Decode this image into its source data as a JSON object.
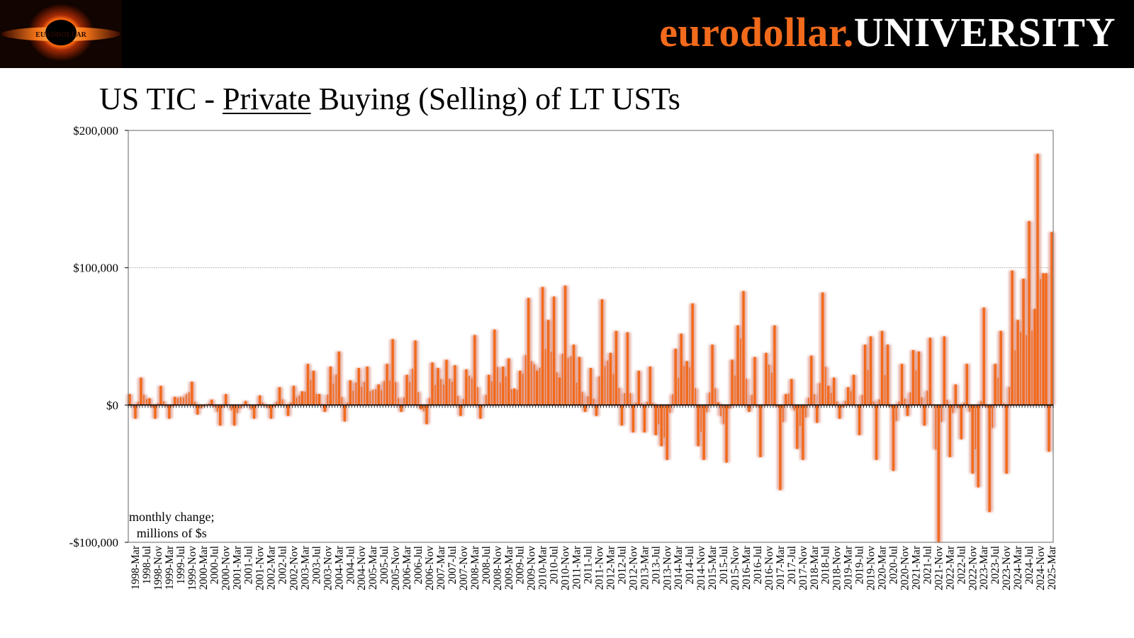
{
  "brand": {
    "part1": "eurodollar.",
    "part2": "UNIVERSITY"
  },
  "logo": {
    "text": "EURODOLLAR"
  },
  "title": {
    "prefix": "US TIC - ",
    "emphasis": "Private",
    "suffix": " Buying (Selling) of LT USTs"
  },
  "note": {
    "line1": "monthly change;",
    "line2": "millions of $s"
  },
  "colors": {
    "bar": "#f26a1b",
    "glow": "#e3a397",
    "brand_orange": "#f26a1b",
    "header_bg": "#000000"
  },
  "chart_data": {
    "type": "bar",
    "title": "US TIC - Private Buying (Selling) of LT USTs",
    "ylabel": "monthly change; millions of $s",
    "ylim": [
      -100000,
      200000
    ],
    "yticks": [
      200000,
      100000,
      0,
      -100000
    ],
    "ytick_labels": [
      "$200,000",
      "$100,000",
      "$0",
      "-$100,000"
    ],
    "grid": true,
    "start": "1998-01",
    "end": "2025-03",
    "tick_labels": [
      "1998-Mar",
      "1998-Jul",
      "1998-Nov",
      "1999-Mar",
      "1999-Jul",
      "1999-Nov",
      "2000-Mar",
      "2000-Jul",
      "2000-Nov",
      "2001-Mar",
      "2001-Jul",
      "2001-Nov",
      "2002-Mar",
      "2002-Jul",
      "2002-Nov",
      "2003-Mar",
      "2003-Jul",
      "2003-Nov",
      "2004-Mar",
      "2004-Jul",
      "2004-Nov",
      "2005-Mar",
      "2005-Jul",
      "2005-Nov",
      "2006-Mar",
      "2006-Jul",
      "2006-Nov",
      "2007-Mar",
      "2007-Jul",
      "2007-Nov",
      "2008-Mar",
      "2008-Jul",
      "2008-Nov",
      "2009-Mar",
      "2009-Jul",
      "2009-Nov",
      "2010-Mar",
      "2010-Jul",
      "2010-Nov",
      "2011-Mar",
      "2011-Jul",
      "2011-Nov",
      "2012-Mar",
      "2012-Jul",
      "2012-Nov",
      "2013-Mar",
      "2013-Jul",
      "2013-Nov",
      "2014-Mar",
      "2014-Jul",
      "2014-Nov",
      "2015-Mar",
      "2015-Jul",
      "2015-Nov",
      "2016-Mar",
      "2016-Jul",
      "2016-Nov",
      "2017-Mar",
      "2017-Jul",
      "2017-Nov",
      "2018-Mar",
      "2018-Jul",
      "2018-Nov",
      "2019-Mar",
      "2019-Jul",
      "2019-Nov",
      "2020-Mar",
      "2020-Jul",
      "2020-Nov",
      "2021-Mar",
      "2021-Jul",
      "2021-Nov",
      "2022-Mar",
      "2022-Jul",
      "2022-Nov",
      "2023-Mar",
      "2023-Jul",
      "2023-Nov",
      "2024-Mar",
      "2024-Jul",
      "2024-Nov",
      "2025-Mar"
    ],
    "highlights": [
      {
        "t": "1998-01",
        "v": 8000
      },
      {
        "t": "1998-03",
        "v": -10000
      },
      {
        "t": "1998-05",
        "v": 20000
      },
      {
        "t": "1998-08",
        "v": 5000
      },
      {
        "t": "1998-10",
        "v": -10000
      },
      {
        "t": "1998-12",
        "v": 14000
      },
      {
        "t": "1999-03",
        "v": -10000
      },
      {
        "t": "1999-05",
        "v": 6000
      },
      {
        "t": "1999-11",
        "v": 17000
      },
      {
        "t": "2000-01",
        "v": -7000
      },
      {
        "t": "2000-06",
        "v": 4000
      },
      {
        "t": "2000-09",
        "v": -15000
      },
      {
        "t": "2000-11",
        "v": 8000
      },
      {
        "t": "2001-02",
        "v": -15000
      },
      {
        "t": "2001-06",
        "v": 3000
      },
      {
        "t": "2001-09",
        "v": -10000
      },
      {
        "t": "2001-11",
        "v": 7000
      },
      {
        "t": "2002-03",
        "v": -10000
      },
      {
        "t": "2002-06",
        "v": 13000
      },
      {
        "t": "2002-09",
        "v": -8000
      },
      {
        "t": "2002-11",
        "v": 14000
      },
      {
        "t": "2003-02",
        "v": 10000
      },
      {
        "t": "2003-04",
        "v": 30000
      },
      {
        "t": "2003-06",
        "v": 25000
      },
      {
        "t": "2003-08",
        "v": 8000
      },
      {
        "t": "2003-10",
        "v": -5000
      },
      {
        "t": "2003-12",
        "v": 28000
      },
      {
        "t": "2004-03",
        "v": 39000
      },
      {
        "t": "2004-05",
        "v": -12000
      },
      {
        "t": "2004-07",
        "v": 18000
      },
      {
        "t": "2004-10",
        "v": 27000
      },
      {
        "t": "2005-01",
        "v": 28000
      },
      {
        "t": "2005-05",
        "v": 15000
      },
      {
        "t": "2005-08",
        "v": 30000
      },
      {
        "t": "2005-10",
        "v": 48000
      },
      {
        "t": "2006-01",
        "v": -5000
      },
      {
        "t": "2006-03",
        "v": 22000
      },
      {
        "t": "2006-06",
        "v": 47000
      },
      {
        "t": "2006-08",
        "v": -3000
      },
      {
        "t": "2006-10",
        "v": -14000
      },
      {
        "t": "2006-12",
        "v": 31000
      },
      {
        "t": "2007-02",
        "v": 27000
      },
      {
        "t": "2007-05",
        "v": 33000
      },
      {
        "t": "2007-08",
        "v": 29000
      },
      {
        "t": "2007-10",
        "v": -8000
      },
      {
        "t": "2007-12",
        "v": 26000
      },
      {
        "t": "2008-03",
        "v": 51000
      },
      {
        "t": "2008-05",
        "v": -10000
      },
      {
        "t": "2008-08",
        "v": 22000
      },
      {
        "t": "2008-10",
        "v": 55000
      },
      {
        "t": "2009-01",
        "v": 28000
      },
      {
        "t": "2009-03",
        "v": 34000
      },
      {
        "t": "2009-05",
        "v": 12000
      },
      {
        "t": "2009-07",
        "v": 25000
      },
      {
        "t": "2009-10",
        "v": 78000
      },
      {
        "t": "2010-01",
        "v": 25000
      },
      {
        "t": "2010-03",
        "v": 86000
      },
      {
        "t": "2010-05",
        "v": 62000
      },
      {
        "t": "2010-07",
        "v": 79000
      },
      {
        "t": "2010-09",
        "v": 20000
      },
      {
        "t": "2010-11",
        "v": 87000
      },
      {
        "t": "2011-02",
        "v": 44000
      },
      {
        "t": "2011-04",
        "v": 35000
      },
      {
        "t": "2011-06",
        "v": -5000
      },
      {
        "t": "2011-08",
        "v": 27000
      },
      {
        "t": "2011-10",
        "v": -8000
      },
      {
        "t": "2011-12",
        "v": 77000
      },
      {
        "t": "2012-03",
        "v": 38000
      },
      {
        "t": "2012-05",
        "v": 54000
      },
      {
        "t": "2012-07",
        "v": -15000
      },
      {
        "t": "2012-09",
        "v": 53000
      },
      {
        "t": "2012-11",
        "v": -20000
      },
      {
        "t": "2013-01",
        "v": 25000
      },
      {
        "t": "2013-03",
        "v": -20000
      },
      {
        "t": "2013-05",
        "v": 28000
      },
      {
        "t": "2013-07",
        "v": -22000
      },
      {
        "t": "2013-09",
        "v": -30000
      },
      {
        "t": "2013-11",
        "v": -40000
      },
      {
        "t": "2014-02",
        "v": 41000
      },
      {
        "t": "2014-04",
        "v": 52000
      },
      {
        "t": "2014-06",
        "v": 32000
      },
      {
        "t": "2014-08",
        "v": 74000
      },
      {
        "t": "2014-10",
        "v": -30000
      },
      {
        "t": "2014-12",
        "v": -40000
      },
      {
        "t": "2015-03",
        "v": 44000
      },
      {
        "t": "2015-05",
        "v": 2000
      },
      {
        "t": "2015-08",
        "v": -42000
      },
      {
        "t": "2015-10",
        "v": 33000
      },
      {
        "t": "2015-12",
        "v": 58000
      },
      {
        "t": "2016-02",
        "v": 83000
      },
      {
        "t": "2016-04",
        "v": -5000
      },
      {
        "t": "2016-06",
        "v": 35000
      },
      {
        "t": "2016-08",
        "v": -38000
      },
      {
        "t": "2016-10",
        "v": 38000
      },
      {
        "t": "2017-01",
        "v": 58000
      },
      {
        "t": "2017-03",
        "v": -62000
      },
      {
        "t": "2017-05",
        "v": 8000
      },
      {
        "t": "2017-07",
        "v": 19000
      },
      {
        "t": "2017-09",
        "v": -32000
      },
      {
        "t": "2017-11",
        "v": -40000
      },
      {
        "t": "2018-02",
        "v": 36000
      },
      {
        "t": "2018-04",
        "v": -13000
      },
      {
        "t": "2018-06",
        "v": 82000
      },
      {
        "t": "2018-08",
        "v": 14000
      },
      {
        "t": "2018-10",
        "v": 20000
      },
      {
        "t": "2018-12",
        "v": -10000
      },
      {
        "t": "2019-03",
        "v": 13000
      },
      {
        "t": "2019-05",
        "v": 22000
      },
      {
        "t": "2019-07",
        "v": -22000
      },
      {
        "t": "2019-09",
        "v": 44000
      },
      {
        "t": "2019-11",
        "v": 50000
      },
      {
        "t": "2020-01",
        "v": -40000
      },
      {
        "t": "2020-03",
        "v": 54000
      },
      {
        "t": "2020-05",
        "v": 44000
      },
      {
        "t": "2020-07",
        "v": -48000
      },
      {
        "t": "2020-10",
        "v": 30000
      },
      {
        "t": "2020-12",
        "v": -8000
      },
      {
        "t": "2021-02",
        "v": 40000
      },
      {
        "t": "2021-04",
        "v": 39000
      },
      {
        "t": "2021-06",
        "v": -15000
      },
      {
        "t": "2021-08",
        "v": 49000
      },
      {
        "t": "2021-11",
        "v": -100000
      },
      {
        "t": "2022-01",
        "v": 50000
      },
      {
        "t": "2022-03",
        "v": -38000
      },
      {
        "t": "2022-05",
        "v": 15000
      },
      {
        "t": "2022-07",
        "v": -25000
      },
      {
        "t": "2022-09",
        "v": 30000
      },
      {
        "t": "2022-11",
        "v": -50000
      },
      {
        "t": "2023-01",
        "v": -60000
      },
      {
        "t": "2023-03",
        "v": 71000
      },
      {
        "t": "2023-05",
        "v": -78000
      },
      {
        "t": "2023-07",
        "v": 30000
      },
      {
        "t": "2023-09",
        "v": 54000
      },
      {
        "t": "2023-11",
        "v": -50000
      },
      {
        "t": "2024-01",
        "v": 98000
      },
      {
        "t": "2024-03",
        "v": 62000
      },
      {
        "t": "2024-05",
        "v": 92000
      },
      {
        "t": "2024-07",
        "v": 134000
      },
      {
        "t": "2024-09",
        "v": 70000
      },
      {
        "t": "2024-10",
        "v": 183000
      },
      {
        "t": "2024-12",
        "v": 96000
      },
      {
        "t": "2025-01",
        "v": 96000
      },
      {
        "t": "2025-02",
        "v": -34000
      },
      {
        "t": "2025-03",
        "v": 126000
      }
    ]
  }
}
